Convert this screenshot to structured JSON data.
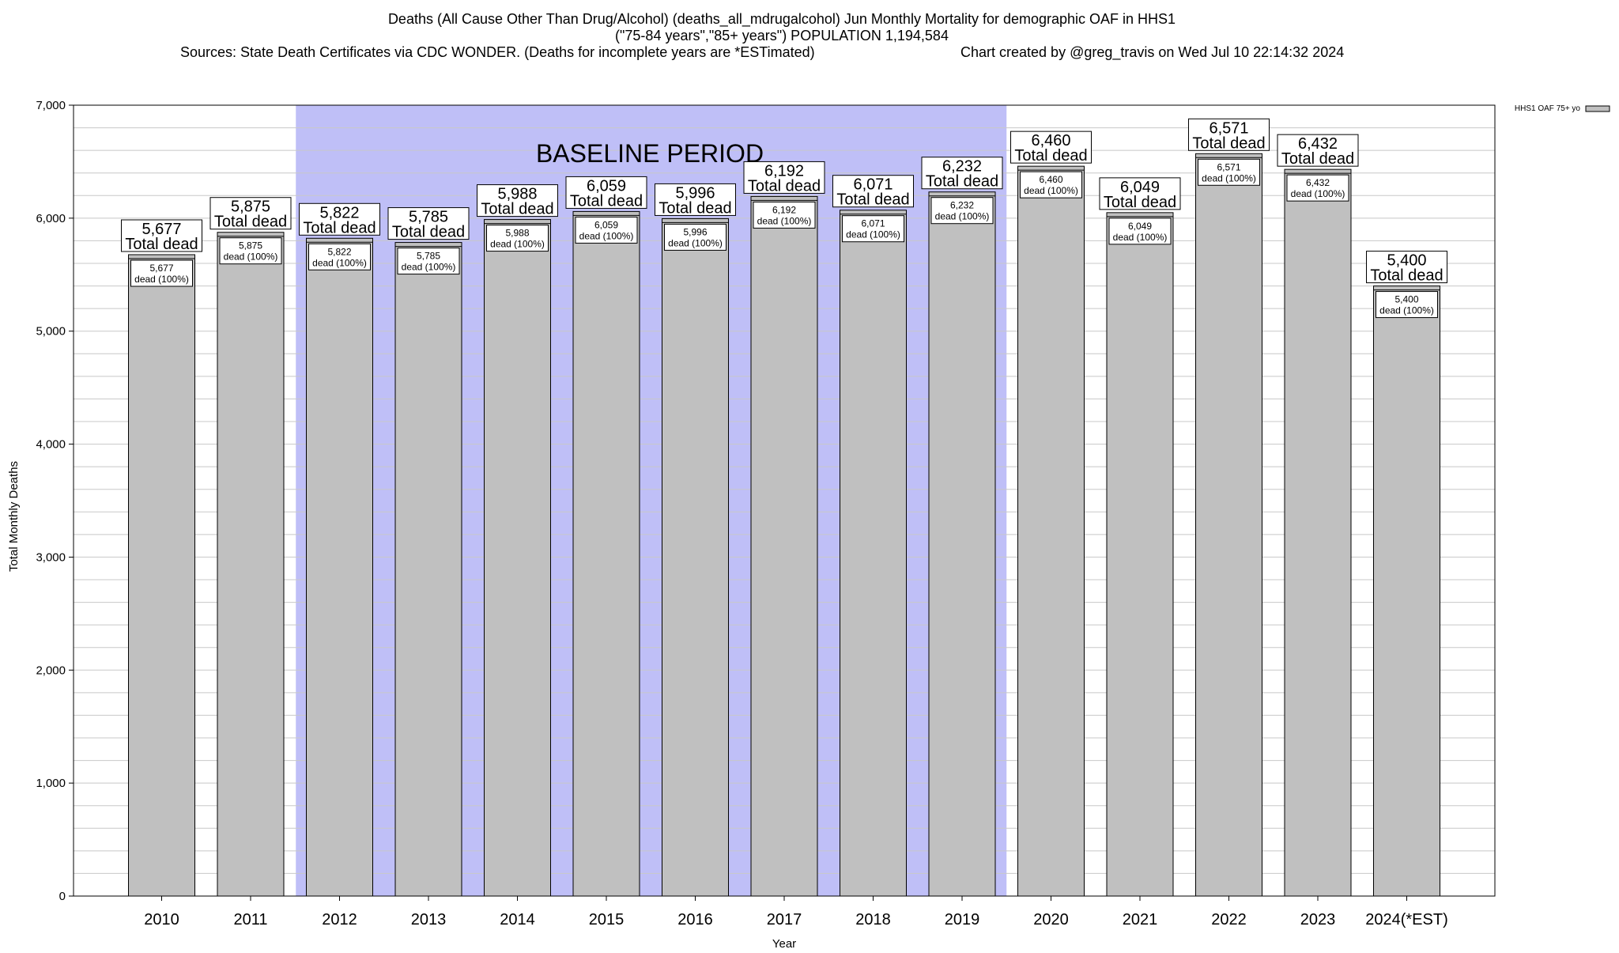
{
  "chart_data": {
    "type": "bar",
    "title_lines": [
      "Deaths (All Cause Other Than Drug/Alcohol) (deaths_all_mdrugalcohol) Jun Monthly Mortality for demographic OAF in HHS1",
      "(\"75-84 years\",\"85+ years\") POPULATION 1,194,584"
    ],
    "sources": "Sources: State Death Certificates via CDC WONDER. (Deaths for incomplete years are *ESTimated)",
    "credit": "Chart created by @greg_travis on Wed Jul 10 22:14:32 2024",
    "xlabel": "Year",
    "ylabel": "Total Monthly Deaths",
    "ylim": [
      0,
      7000
    ],
    "yticks": [
      0,
      1000,
      2000,
      3000,
      4000,
      5000,
      6000,
      7000
    ],
    "ytick_labels": [
      "0",
      "1,000",
      "2,000",
      "3,000",
      "4,000",
      "5,000",
      "6,000",
      "7,000"
    ],
    "minor_ticks_per_major": 5,
    "grid": true,
    "legend": {
      "placement": "top-right",
      "label": "HHS1 OAF 75+ yo"
    },
    "baseline": {
      "label": "BASELINE PERIOD",
      "from": "2012",
      "to": "2019",
      "color": "#bfbff7"
    },
    "colors": {
      "bar_fill": "#c0c0c0",
      "bar_stroke": "#000000",
      "grid": "#c8c8c8"
    },
    "categories": [
      "2010",
      "2011",
      "2012",
      "2013",
      "2014",
      "2015",
      "2016",
      "2017",
      "2018",
      "2019",
      "2020",
      "2021",
      "2022",
      "2023",
      "2024(*EST)"
    ],
    "series": [
      {
        "name": "HHS1 OAF 75+ yo",
        "values": [
          5677,
          5875,
          5822,
          5785,
          5988,
          6059,
          5996,
          6192,
          6071,
          6232,
          6460,
          6049,
          6571,
          6432,
          5400
        ]
      }
    ],
    "top_value_labels": [
      "5,677",
      "5,875",
      "5,822",
      "5,785",
      "5,988",
      "6,059",
      "5,996",
      "6,192",
      "6,071",
      "6,232",
      "6,460",
      "6,049",
      "6,571",
      "6,432",
      "5,400"
    ],
    "top_caption": "Total dead",
    "inner_value_labels": [
      "5,677",
      "5,875",
      "5,822",
      "5,785",
      "5,988",
      "6,059",
      "5,996",
      "6,192",
      "6,071",
      "6,232",
      "6,460",
      "6,049",
      "6,571",
      "6,432",
      "5,400"
    ],
    "inner_caption": "dead (100%)"
  }
}
